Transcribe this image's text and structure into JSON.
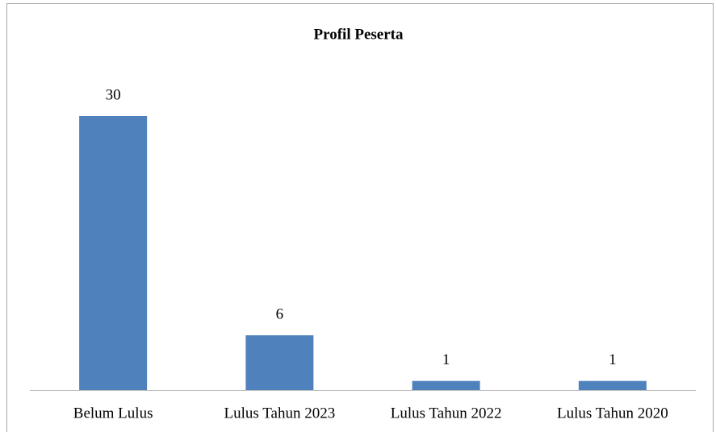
{
  "chart_data": {
    "type": "bar",
    "title": "Profil Peserta",
    "categories": [
      "Belum Lulus",
      "Lulus Tahun 2023",
      "Lulus Tahun 2022",
      "Lulus Tahun 2020"
    ],
    "values": [
      30,
      6,
      1,
      1
    ],
    "color": "#4f81bd"
  }
}
